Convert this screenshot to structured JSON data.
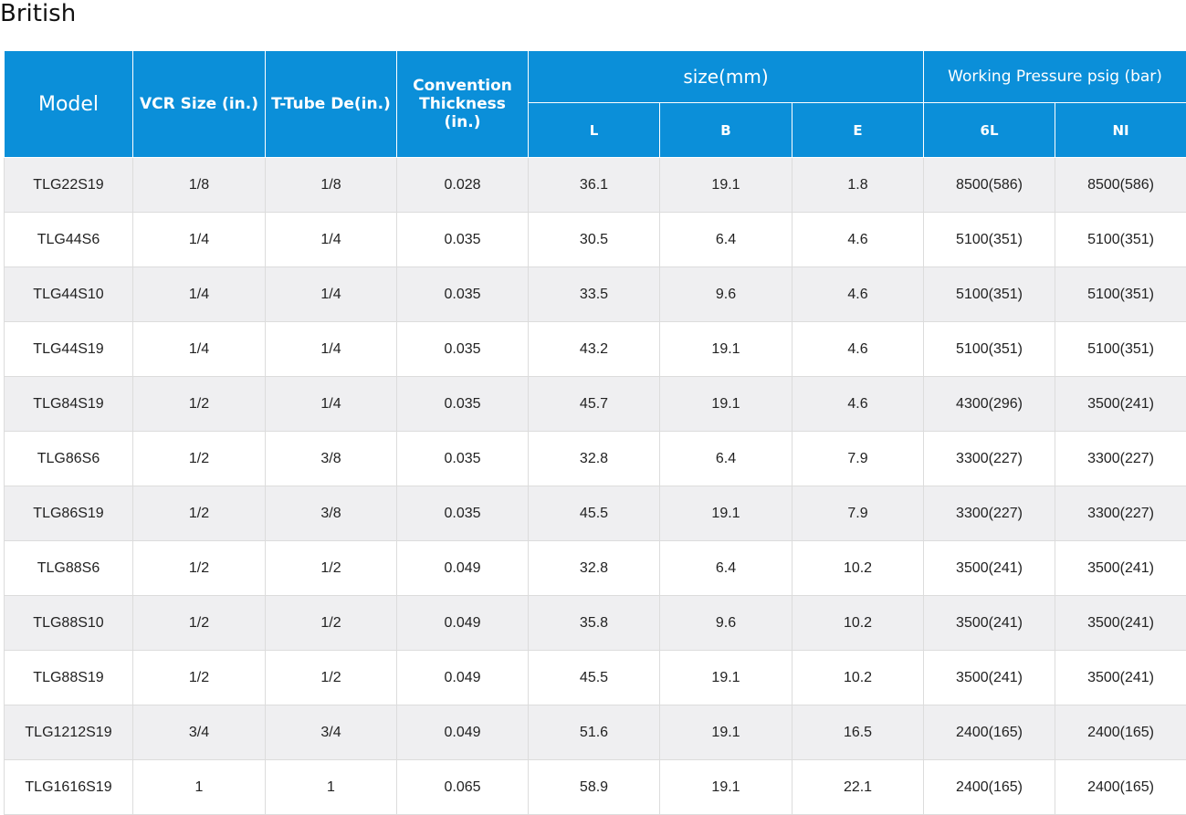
{
  "title": "British",
  "header": {
    "model": "Model",
    "vcr_size": "VCR Size (in.)",
    "t_tube": "T-Tube De(in.)",
    "convention": "Convention Thickness (in.)",
    "size_group": "size(mm)",
    "pressure_group": "Working Pressure psig (bar)",
    "sub": [
      "L",
      "B",
      "E",
      "6L",
      "NI"
    ]
  },
  "rows": [
    [
      "TLG22S19",
      "1/8",
      "1/8",
      "0.028",
      "36.1",
      "19.1",
      "1.8",
      "8500(586)",
      "8500(586)"
    ],
    [
      "TLG44S6",
      "1/4",
      "1/4",
      "0.035",
      "30.5",
      "6.4",
      "4.6",
      "5100(351)",
      "5100(351)"
    ],
    [
      "TLG44S10",
      "1/4",
      "1/4",
      "0.035",
      "33.5",
      "9.6",
      "4.6",
      "5100(351)",
      "5100(351)"
    ],
    [
      "TLG44S19",
      "1/4",
      "1/4",
      "0.035",
      "43.2",
      "19.1",
      "4.6",
      "5100(351)",
      "5100(351)"
    ],
    [
      "TLG84S19",
      "1/2",
      "1/4",
      "0.035",
      "45.7",
      "19.1",
      "4.6",
      "4300(296)",
      "3500(241)"
    ],
    [
      "TLG86S6",
      "1/2",
      "3/8",
      "0.035",
      "32.8",
      "6.4",
      "7.9",
      "3300(227)",
      "3300(227)"
    ],
    [
      "TLG86S19",
      "1/2",
      "3/8",
      "0.035",
      "45.5",
      "19.1",
      "7.9",
      "3300(227)",
      "3300(227)"
    ],
    [
      "TLG88S6",
      "1/2",
      "1/2",
      "0.049",
      "32.8",
      "6.4",
      "10.2",
      "3500(241)",
      "3500(241)"
    ],
    [
      "TLG88S10",
      "1/2",
      "1/2",
      "0.049",
      "35.8",
      "9.6",
      "10.2",
      "3500(241)",
      "3500(241)"
    ],
    [
      "TLG88S19",
      "1/2",
      "1/2",
      "0.049",
      "45.5",
      "19.1",
      "10.2",
      "3500(241)",
      "3500(241)"
    ],
    [
      "TLG1212S19",
      "3/4",
      "3/4",
      "0.049",
      "51.6",
      "19.1",
      "16.5",
      "2400(165)",
      "2400(165)"
    ],
    [
      "TLG1616S19",
      "1",
      "1",
      "0.065",
      "58.9",
      "19.1",
      "22.1",
      "2400(165)",
      "2400(165)"
    ]
  ],
  "colors": {
    "header_bg": "#0b8fd9",
    "header_text": "#ffffff",
    "row_alt_bg": "#efeff1",
    "row_bg": "#ffffff"
  }
}
